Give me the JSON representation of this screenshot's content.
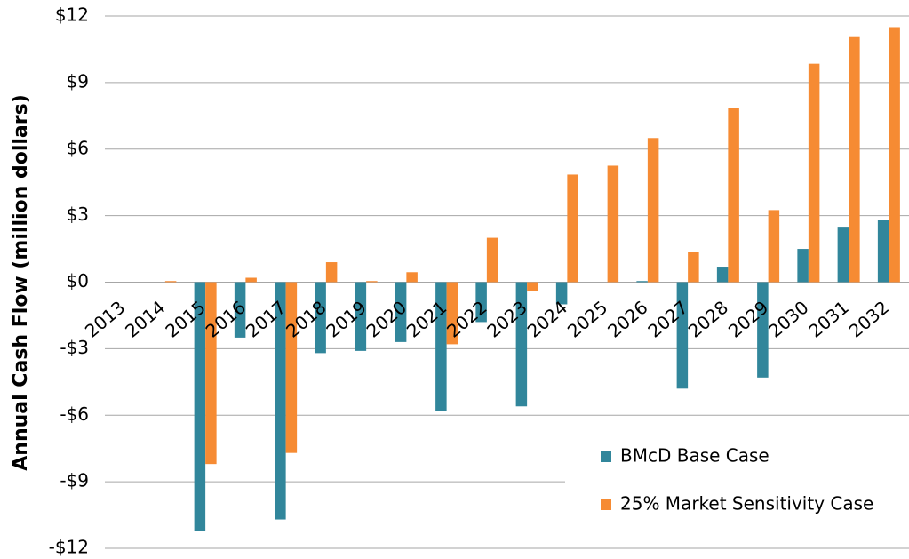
{
  "chart_data": {
    "type": "bar",
    "y_label": "Annual Cash Flow (million dollars)",
    "categories": [
      "2013",
      "2014",
      "2015",
      "2016",
      "2017",
      "2018",
      "2019",
      "2020",
      "2021",
      "2022",
      "2023",
      "2024",
      "2025",
      "2026",
      "2027",
      "2028",
      "2029",
      "2030",
      "2031",
      "2032"
    ],
    "series": [
      {
        "name": "BMcD Base Case",
        "color": "#31869b",
        "values": [
          0,
          0,
          -11.2,
          -2.5,
          -10.7,
          -3.2,
          -3.1,
          -2.7,
          -5.8,
          -1.8,
          -5.6,
          -1.0,
          0,
          0.05,
          -4.8,
          0.7,
          -4.3,
          1.5,
          2.5,
          2.8
        ]
      },
      {
        "name": "25% Market Sensitivity Case",
        "color": "#f68b33",
        "values": [
          0,
          0.05,
          -8.2,
          0.2,
          -7.7,
          0.9,
          0.05,
          0.45,
          -2.8,
          2.0,
          -0.4,
          4.85,
          5.25,
          6.5,
          1.35,
          7.85,
          3.25,
          9.85,
          11.05,
          11.5
        ]
      }
    ],
    "ylim": [
      -12,
      12
    ],
    "yticks": [
      {
        "value": -12,
        "label": "-$12"
      },
      {
        "value": -9,
        "label": "-$9"
      },
      {
        "value": -6,
        "label": "-$6"
      },
      {
        "value": -3,
        "label": "-$3"
      },
      {
        "value": 0,
        "label": "$0"
      },
      {
        "value": 3,
        "label": "$3"
      },
      {
        "value": 6,
        "label": "$6"
      },
      {
        "value": 9,
        "label": "$9"
      },
      {
        "value": 12,
        "label": "$12"
      }
    ],
    "grid": true,
    "legend": "lower right"
  }
}
